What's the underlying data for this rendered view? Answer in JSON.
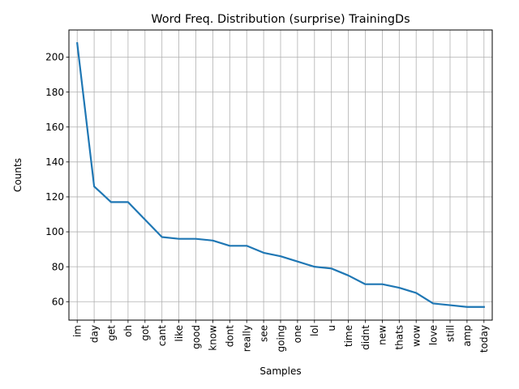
{
  "chart_data": {
    "type": "line",
    "title": "Word Freq. Distribution (surprise) TrainingDs",
    "xlabel": "Samples",
    "ylabel": "Counts",
    "categories": [
      "im",
      "day",
      "get",
      "oh",
      "got",
      "cant",
      "like",
      "good",
      "know",
      "dont",
      "really",
      "see",
      "going",
      "one",
      "lol",
      "u",
      "time",
      "didnt",
      "new",
      "thats",
      "wow",
      "love",
      "still",
      "amp",
      "today"
    ],
    "series": [
      {
        "values": [
          208,
          126,
          117,
          117,
          107,
          97,
          96,
          96,
          95,
          92,
          92,
          88,
          86,
          83,
          80,
          79,
          75,
          70,
          70,
          68,
          65,
          59,
          58,
          57,
          57
        ],
        "color": "#1f77b4"
      }
    ],
    "ylim": [
      49.45,
      215.55
    ],
    "yticks": [
      60,
      80,
      100,
      120,
      140,
      160,
      180,
      200
    ],
    "grid": true,
    "legend": "none"
  }
}
